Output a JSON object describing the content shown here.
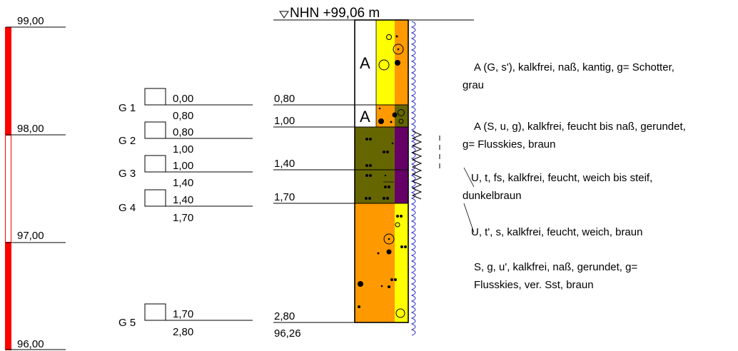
{
  "colors": {
    "scale_red": "#ff0000",
    "fill_gravel": "#ffff00",
    "fill_sand": "#ff9900",
    "fill_silt": "#666600",
    "fill_humus": "#660066",
    "water_blue": "#3333cc"
  },
  "elevation_scale": {
    "top": 99.0,
    "bottom": 96.0,
    "labels": [
      {
        "value": 99.0,
        "text": "99,00"
      },
      {
        "value": 98.0,
        "text": "98,00"
      },
      {
        "value": 97.0,
        "text": "97,00"
      },
      {
        "value": 96.0,
        "text": "96,00"
      }
    ]
  },
  "header": {
    "elevation_label": "NHN +99,06 m",
    "top_elevation": 99.06
  },
  "samples": [
    {
      "id": "G 1",
      "top": "0,00",
      "bottom": "0,80",
      "top_value": 0.0,
      "bottom_value": 0.8
    },
    {
      "id": "G 2",
      "top": "0,80",
      "bottom": "1,00",
      "top_value": 0.8,
      "bottom_value": 1.0
    },
    {
      "id": "G 3",
      "top": "1,00",
      "bottom": "1,40",
      "top_value": 1.0,
      "bottom_value": 1.4
    },
    {
      "id": "G 4",
      "top": "1,40",
      "bottom": "1,70",
      "top_value": 1.4,
      "bottom_value": 1.7
    },
    {
      "id": "G 5",
      "top": "1,70",
      "bottom": "2,80",
      "top_value": 1.7,
      "bottom_value": 2.8
    }
  ],
  "layer_depths": [
    {
      "value": 0.8,
      "text": "0,80"
    },
    {
      "value": 1.0,
      "text": "1,00"
    },
    {
      "value": 1.4,
      "text": "1,40"
    },
    {
      "value": 1.7,
      "text": "1,70"
    },
    {
      "value": 2.8,
      "text": "2,80"
    }
  ],
  "final_elevation": "96,26",
  "layers": [
    {
      "top": 0.0,
      "bottom": 0.8,
      "marker": "A",
      "fills": [
        "white",
        "gravel",
        "sand"
      ],
      "description": [
        "A (G, s'), kalkfrei, naß, kantig, g= Schotter,",
        "grau"
      ]
    },
    {
      "top": 0.8,
      "bottom": 1.0,
      "marker": "A",
      "fills": [
        "white",
        "sand",
        "silt"
      ],
      "description": [
        "A (S, u, g), kalkfrei, feucht bis naß, gerundet,",
        "g= Flusskies, braun"
      ]
    },
    {
      "top": 1.0,
      "bottom": 1.4,
      "marker": "",
      "fills": [
        "silt",
        "silt",
        "humus"
      ],
      "description": [
        "U, t, fs, kalkfrei, feucht, weich bis steif,",
        "dunkelbraun"
      ]
    },
    {
      "top": 1.4,
      "bottom": 1.7,
      "marker": "",
      "fills": [
        "silt",
        "silt",
        "humus"
      ],
      "description": [
        "U, t', s, kalkfrei, feucht, weich, braun"
      ]
    },
    {
      "top": 1.7,
      "bottom": 2.8,
      "marker": "",
      "fills": [
        "sand",
        "sand",
        "gravel"
      ],
      "description": [
        "S, g, u', kalkfrei, naß, gerundet, g=",
        "Flusskies, ver. Sst, braun"
      ]
    }
  ]
}
